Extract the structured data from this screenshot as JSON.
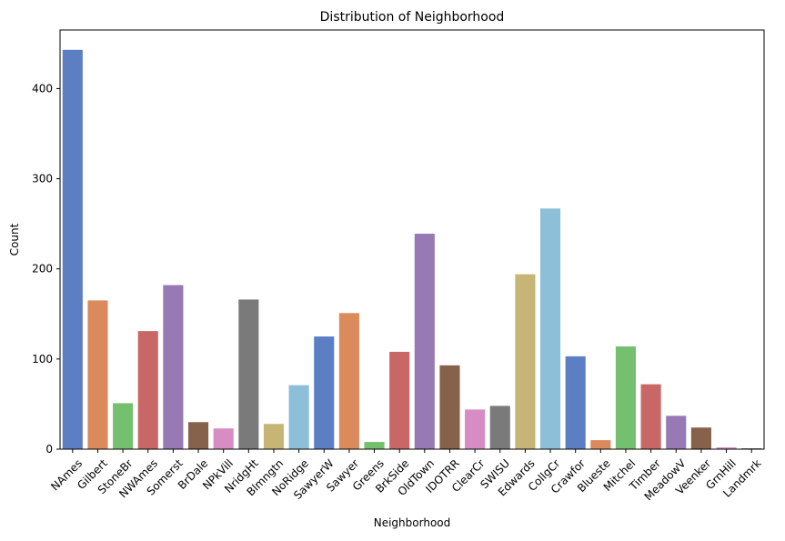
{
  "chart_data": {
    "type": "bar",
    "title": "Distribution of Neighborhood",
    "xlabel": "Neighborhood",
    "ylabel": "Count",
    "ylim": [
      0,
      465
    ],
    "yticks": [
      0,
      100,
      200,
      300,
      400
    ],
    "grid": false,
    "categories": [
      "NAmes",
      "Gilbert",
      "StoneBr",
      "NWAmes",
      "Somerst",
      "BrDale",
      "NPkVill",
      "NridgHt",
      "Blmngtn",
      "NoRidge",
      "SawyerW",
      "Sawyer",
      "Greens",
      "BrkSide",
      "OldTown",
      "IDOTRR",
      "ClearCr",
      "SWISU",
      "Edwards",
      "CollgCr",
      "Crawfor",
      "Blueste",
      "Mitchel",
      "Timber",
      "MeadowV",
      "Veenker",
      "GrnHill",
      "Landmrk"
    ],
    "values": [
      443,
      165,
      51,
      131,
      182,
      30,
      23,
      166,
      28,
      71,
      125,
      151,
      8,
      108,
      239,
      93,
      44,
      48,
      194,
      267,
      103,
      10,
      114,
      72,
      37,
      24,
      2,
      1
    ],
    "palette": [
      "#5c7fc4",
      "#db8a5c",
      "#74c06e",
      "#c96767",
      "#9779b3",
      "#86624a",
      "#d78cc4",
      "#7a7a7a",
      "#c7b576",
      "#8ebfd8"
    ]
  }
}
